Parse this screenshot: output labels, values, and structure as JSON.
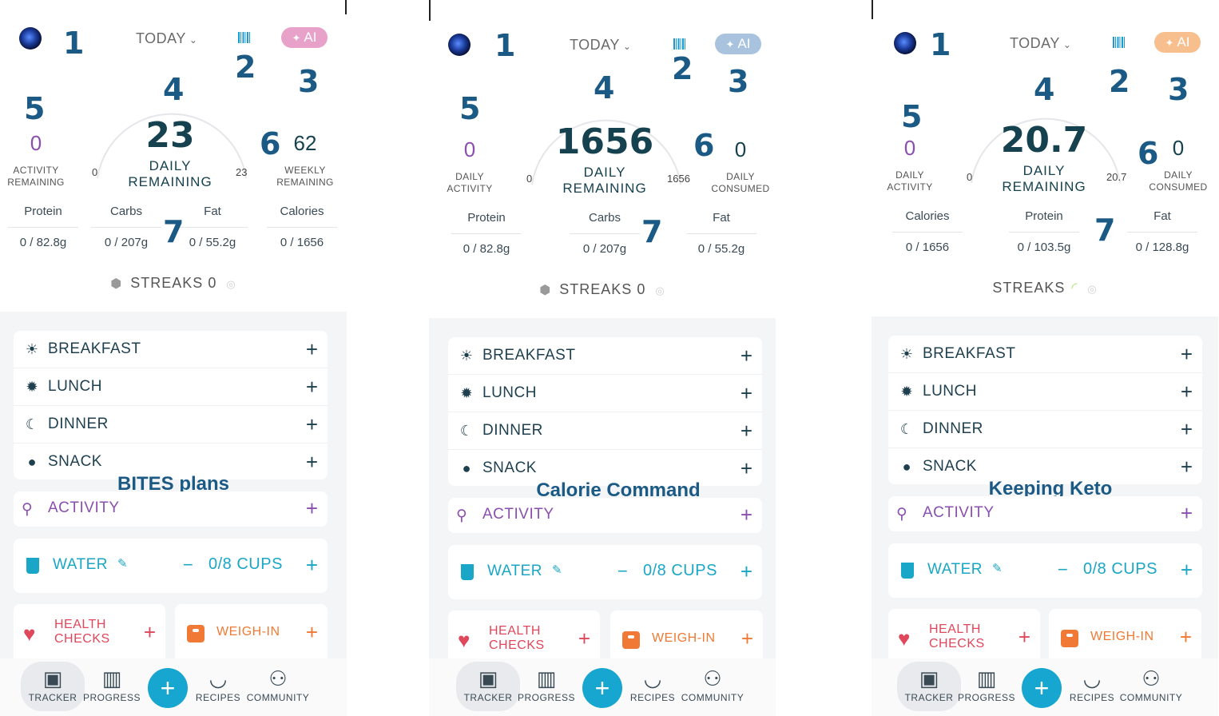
{
  "nav_labels": [
    "TRACKER",
    "PROGRESS",
    "RECIPES",
    "COMMUNITY"
  ],
  "callouts": [
    "1",
    "2",
    "3",
    "4",
    "5",
    "6",
    "7"
  ],
  "phones": [
    {
      "plan_name": "BITES plans",
      "today_label": "TODAY",
      "ai_label": "AI",
      "ai_color": "#e8a1c9",
      "left_value": "0",
      "left_label_1": "ACTIVITY",
      "left_label_2": "REMAINING",
      "left_color": "#8a4fb0",
      "big_value": "23",
      "big_label_1": "DAILY",
      "big_label_2": "REMAINING",
      "gauge_min": "0",
      "gauge_max": "23",
      "right_value": "62",
      "right_label_1": "WEEKLY",
      "right_label_2": "REMAINING",
      "macros": [
        {
          "name": "Protein",
          "value": "0 / 82.8g"
        },
        {
          "name": "Carbs",
          "value": "0 / 207g"
        },
        {
          "name": "Fat",
          "value": "0 / 55.2g"
        },
        {
          "name": "Calories",
          "value": "0 / 1656"
        }
      ],
      "streaks_label": "STREAKS",
      "streaks_value": "0",
      "meals": [
        "BREAKFAST",
        "LUNCH",
        "DINNER",
        "SNACK"
      ],
      "activity": "ACTIVITY",
      "water": "WATER",
      "water_amount": "0/8 CUPS",
      "health_checks_1": "HEALTH",
      "health_checks_2": "CHECKS",
      "weigh_in": "WEIGH-IN"
    },
    {
      "plan_name": "Calorie Command",
      "today_label": "TODAY",
      "ai_label": "AI",
      "ai_color": "#a9c3de",
      "left_value": "0",
      "left_label_1": "DAILY",
      "left_label_2": "ACTIVITY",
      "left_color": "#8a4fb0",
      "big_value": "1656",
      "big_label_1": "DAILY",
      "big_label_2": "REMAINING",
      "gauge_min": "0",
      "gauge_max": "1656",
      "right_value": "0",
      "right_label_1": "DAILY",
      "right_label_2": "CONSUMED",
      "macros": [
        {
          "name": "Protein",
          "value": "0 / 82.8g"
        },
        {
          "name": "Carbs",
          "value": "0 / 207g"
        },
        {
          "name": "Fat",
          "value": "0 / 55.2g"
        }
      ],
      "streaks_label": "STREAKS",
      "streaks_value": "0",
      "meals": [
        "BREAKFAST",
        "LUNCH",
        "DINNER",
        "SNACK"
      ],
      "activity": "ACTIVITY",
      "water": "WATER",
      "water_amount": "0/8 CUPS",
      "health_checks_1": "HEALTH",
      "health_checks_2": "CHECKS",
      "weigh_in": "WEIGH-IN"
    },
    {
      "plan_name": "Keeping Keto",
      "today_label": "TODAY",
      "ai_label": "AI",
      "ai_color": "#f7bf8e",
      "left_value": "0",
      "left_label_1": "DAILY",
      "left_label_2": "ACTIVITY",
      "left_color": "#8a4fb0",
      "big_value": "20.7",
      "big_label_1": "DAILY",
      "big_label_2": "REMAINING",
      "gauge_min": "0",
      "gauge_max": "20.7",
      "right_value": "0",
      "right_label_1": "DAILY",
      "right_label_2": "CONSUMED",
      "macros": [
        {
          "name": "Calories",
          "value": "0 / 1656"
        },
        {
          "name": "Protein",
          "value": "0 / 103.5g"
        },
        {
          "name": "Fat",
          "value": "0 / 128.8g"
        }
      ],
      "streaks_label": "STREAKS",
      "streaks_value": "",
      "meals": [
        "BREAKFAST",
        "LUNCH",
        "DINNER",
        "SNACK"
      ],
      "activity": "ACTIVITY",
      "water": "WATER",
      "water_amount": "0/8 CUPS",
      "health_checks_1": "HEALTH",
      "health_checks_2": "CHECKS",
      "weigh_in": "WEIGH-IN"
    }
  ]
}
